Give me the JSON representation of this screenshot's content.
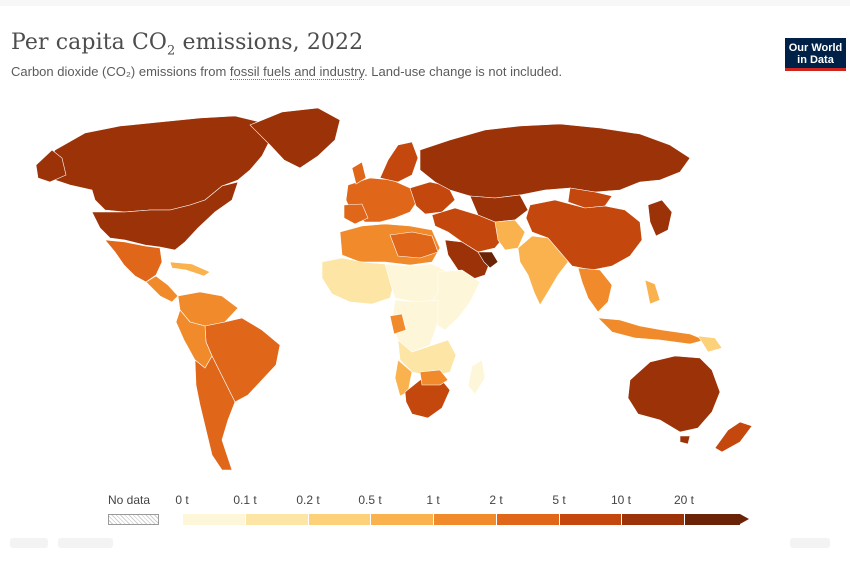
{
  "title_main": "Per capita CO",
  "title_sub": "2",
  "title_end": " emissions, 2022",
  "subtitle_pre": "Carbon dioxide (CO₂) emissions from ",
  "subtitle_link": "fossil fuels and industry",
  "subtitle_post": ". Land-use change is not included.",
  "logo_line1": "Our World",
  "logo_line2": "in Data",
  "legend": {
    "no_data_label": "No data",
    "ticks": [
      "0 t",
      "0.1 t",
      "0.2 t",
      "0.5 t",
      "1 t",
      "2 t",
      "5 t",
      "10 t",
      "20 t"
    ],
    "colors": [
      "#fef6d8",
      "#fde5a6",
      "#fdd07a",
      "#f9b24d",
      "#f08a2a",
      "#e06619",
      "#c4470e",
      "#9c3208",
      "#6b2308"
    ]
  }
}
